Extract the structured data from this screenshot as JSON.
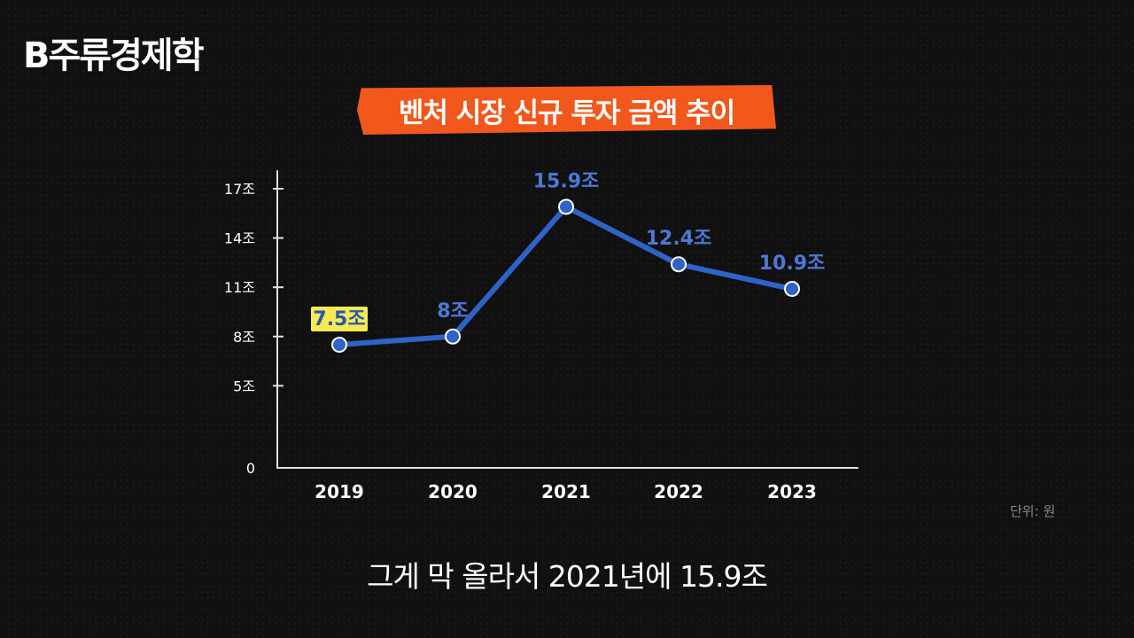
{
  "logo": {
    "text": "B주류경제학"
  },
  "unit_note": "단위: 원",
  "subtitle": "그게 막 올라서 2021년에 15.9조",
  "colors": {
    "line": "#2f63c9",
    "label": "#4a79d6",
    "banner": "#f2581b",
    "highlight": "#f7ea4f",
    "axis": "#e0e0e0"
  },
  "chart_data": {
    "type": "line",
    "title": "벤처 시장 신규 투자 금액 추이",
    "x": [
      "2019",
      "2020",
      "2021",
      "2022",
      "2023"
    ],
    "y_ticks": [
      "0",
      "5조",
      "8조",
      "11조",
      "14조",
      "17조"
    ],
    "series": [
      {
        "values": [
          7.5,
          8,
          15.9,
          12.4,
          10.9
        ],
        "labels": [
          "7.5조",
          "8조",
          "15.9조",
          "12.4조",
          "10.9조"
        ]
      }
    ],
    "highlighted_point": "2019",
    "ylim": [
      0,
      17
    ],
    "grid": false
  }
}
